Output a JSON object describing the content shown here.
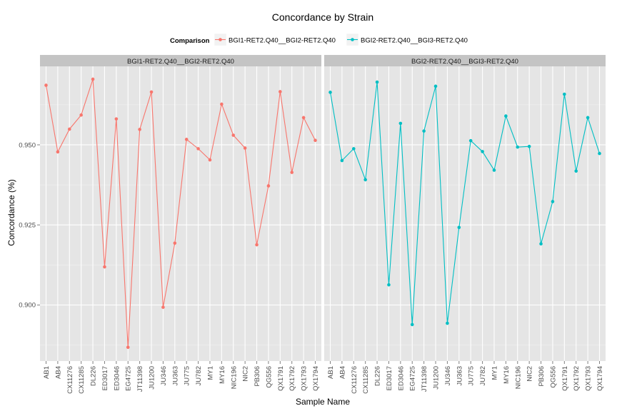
{
  "chart_data": {
    "type": "line",
    "title": "Concordance by Strain",
    "xlabel": "Sample Name",
    "ylabel": "Concordance (%)",
    "legend": {
      "title": "Comparison",
      "position": "top"
    },
    "categories": [
      "AB1",
      "AB4",
      "CX11276",
      "CX11285",
      "DL226",
      "ED3017",
      "ED3046",
      "EG4725",
      "JT11398",
      "JU1200",
      "JU346",
      "JU363",
      "JU775",
      "JU782",
      "MY1",
      "MY16",
      "NIC196",
      "NIC2",
      "PB306",
      "QG556",
      "QX1791",
      "QX1792",
      "QX1793",
      "QX1794"
    ],
    "ylim": [
      0.8825,
      0.9745
    ],
    "yticks": [
      0.9,
      0.925,
      0.95
    ],
    "ytick_labels": [
      "0.900",
      "0.925",
      "0.950"
    ],
    "grid": true,
    "series": [
      {
        "name": "BGI1-RET2.Q40__BGI2-RET2.Q40",
        "panel": "BGI1-RET2.Q40__BGI2-RET2.Q40",
        "color": "#F8766D",
        "values": [
          0.9686,
          0.9478,
          0.9549,
          0.9593,
          0.9705,
          0.9119,
          0.9581,
          0.8868,
          0.9548,
          0.9665,
          0.8993,
          0.9193,
          0.9517,
          0.9488,
          0.9453,
          0.9627,
          0.953,
          0.949,
          0.9188,
          0.9372,
          0.9666,
          0.9414,
          0.9585,
          0.9514
        ]
      },
      {
        "name": "BGI2-RET2.Q40__BGI3-RET2.Q40",
        "panel": "BGI2-RET2.Q40__BGI3-RET2.Q40",
        "color": "#00BFC4",
        "values": [
          0.9664,
          0.9451,
          0.9488,
          0.9391,
          0.9696,
          0.9063,
          0.9567,
          0.8939,
          0.9543,
          0.9683,
          0.8943,
          0.9242,
          0.9513,
          0.9479,
          0.9421,
          0.959,
          0.9493,
          0.9495,
          0.9191,
          0.9323,
          0.9658,
          0.9418,
          0.9585,
          0.9473
        ]
      }
    ]
  }
}
